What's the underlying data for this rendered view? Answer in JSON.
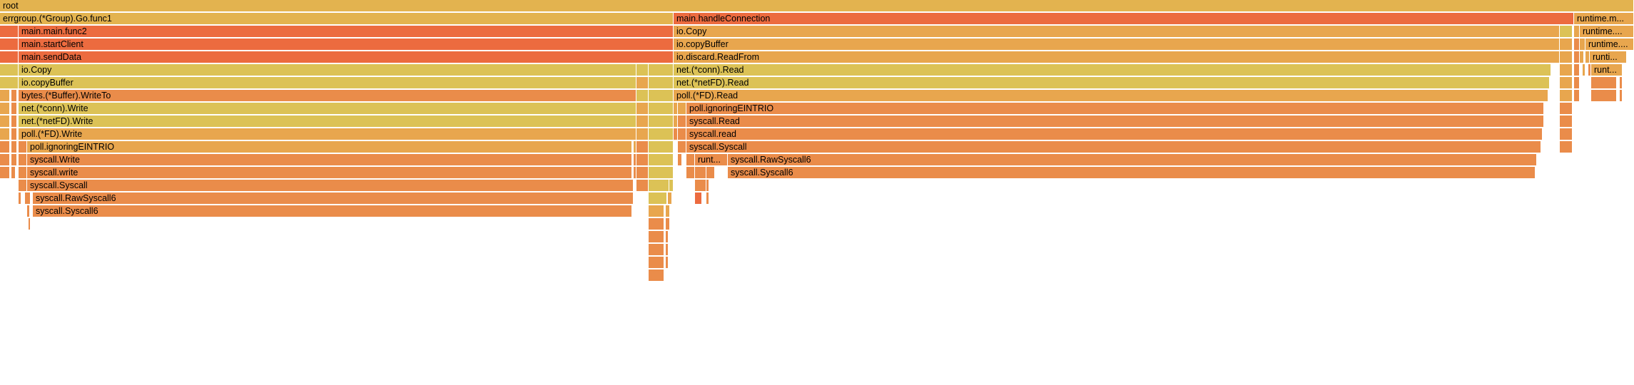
{
  "palette": {
    "red": "#ec6b3f",
    "orange": "#ea8c4a",
    "ochre": "#e8a64e",
    "gold": "#e3b34f",
    "yellow": "#dcc256"
  },
  "chart_data": {
    "type": "flamegraph",
    "title": "",
    "total": 2290,
    "frames": [
      {
        "name": "root",
        "depth": 0,
        "start": 0,
        "width": 2290,
        "color": "gold"
      },
      {
        "name": "errgroup.(*Group).Go.func1",
        "depth": 1,
        "start": 0,
        "width": 944,
        "color": "gold"
      },
      {
        "name": "main.handleConnection",
        "depth": 1,
        "start": 944,
        "width": 1262,
        "color": "red"
      },
      {
        "name": "runtime.m...",
        "depth": 1,
        "start": 2206,
        "width": 84,
        "color": "ochre"
      },
      {
        "name": "",
        "depth": 2,
        "start": 0,
        "width": 26,
        "color": "red"
      },
      {
        "name": "main.main.func2",
        "depth": 2,
        "start": 26,
        "width": 918,
        "color": "red"
      },
      {
        "name": "",
        "depth": 3,
        "start": 0,
        "width": 26,
        "color": "red"
      },
      {
        "name": "main.startClient",
        "depth": 3,
        "start": 26,
        "width": 918,
        "color": "red"
      },
      {
        "name": "",
        "depth": 4,
        "start": 0,
        "width": 26,
        "color": "red"
      },
      {
        "name": "main.sendData",
        "depth": 4,
        "start": 26,
        "width": 918,
        "color": "red"
      },
      {
        "name": "",
        "depth": 5,
        "start": 0,
        "width": 26,
        "color": "yellow"
      },
      {
        "name": "io.Copy",
        "depth": 5,
        "start": 26,
        "width": 866,
        "color": "yellow"
      },
      {
        "name": "",
        "depth": 5,
        "start": 892,
        "width": 17,
        "color": "yellow"
      },
      {
        "name": "",
        "depth": 5,
        "start": 909,
        "width": 35,
        "color": "yellow"
      },
      {
        "name": "",
        "depth": 6,
        "start": 0,
        "width": 26,
        "color": "yellow"
      },
      {
        "name": "io.copyBuffer",
        "depth": 6,
        "start": 26,
        "width": 866,
        "color": "yellow"
      },
      {
        "name": "",
        "depth": 6,
        "start": 892,
        "width": 17,
        "color": "ochre"
      },
      {
        "name": "",
        "depth": 6,
        "start": 909,
        "width": 35,
        "color": "yellow"
      },
      {
        "name": "",
        "depth": 7,
        "start": 0,
        "width": 14,
        "color": "ochre"
      },
      {
        "name": "",
        "depth": 7,
        "start": 16,
        "width": 8,
        "color": "orange"
      },
      {
        "name": "bytes.(*Buffer).WriteTo",
        "depth": 7,
        "start": 26,
        "width": 866,
        "color": "orange"
      },
      {
        "name": "",
        "depth": 7,
        "start": 892,
        "width": 17,
        "color": "yellow"
      },
      {
        "name": "",
        "depth": 7,
        "start": 909,
        "width": 35,
        "color": "yellow"
      },
      {
        "name": "",
        "depth": 8,
        "start": 0,
        "width": 14,
        "color": "ochre"
      },
      {
        "name": "",
        "depth": 8,
        "start": 16,
        "width": 8,
        "color": "orange"
      },
      {
        "name": "net.(*conn).Write",
        "depth": 8,
        "start": 26,
        "width": 866,
        "color": "yellow"
      },
      {
        "name": "",
        "depth": 8,
        "start": 892,
        "width": 17,
        "color": "ochre"
      },
      {
        "name": "",
        "depth": 8,
        "start": 909,
        "width": 35,
        "color": "yellow"
      },
      {
        "name": "",
        "depth": 9,
        "start": 0,
        "width": 14,
        "color": "ochre"
      },
      {
        "name": "",
        "depth": 9,
        "start": 16,
        "width": 8,
        "color": "orange"
      },
      {
        "name": "net.(*netFD).Write",
        "depth": 9,
        "start": 26,
        "width": 866,
        "color": "yellow"
      },
      {
        "name": "",
        "depth": 9,
        "start": 892,
        "width": 17,
        "color": "ochre"
      },
      {
        "name": "",
        "depth": 9,
        "start": 909,
        "width": 35,
        "color": "yellow"
      },
      {
        "name": "",
        "depth": 10,
        "start": 0,
        "width": 14,
        "color": "ochre"
      },
      {
        "name": "",
        "depth": 10,
        "start": 16,
        "width": 8,
        "color": "orange"
      },
      {
        "name": "poll.(*FD).Write",
        "depth": 10,
        "start": 26,
        "width": 866,
        "color": "ochre"
      },
      {
        "name": "",
        "depth": 10,
        "start": 892,
        "width": 17,
        "color": "ochre"
      },
      {
        "name": "",
        "depth": 10,
        "start": 909,
        "width": 35,
        "color": "yellow"
      },
      {
        "name": "",
        "depth": 11,
        "start": 0,
        "width": 14,
        "color": "orange"
      },
      {
        "name": "",
        "depth": 11,
        "start": 16,
        "width": 8,
        "color": "orange"
      },
      {
        "name": "",
        "depth": 11,
        "start": 26,
        "width": 12,
        "color": "orange"
      },
      {
        "name": "poll.ignoringEINTRIO",
        "depth": 11,
        "start": 38,
        "width": 848,
        "color": "ochre"
      },
      {
        "name": "",
        "depth": 11,
        "start": 888,
        "width": 4,
        "color": "ochre"
      },
      {
        "name": "",
        "depth": 11,
        "start": 892,
        "width": 17,
        "color": "orange"
      },
      {
        "name": "",
        "depth": 11,
        "start": 909,
        "width": 35,
        "color": "yellow"
      },
      {
        "name": "",
        "depth": 12,
        "start": 0,
        "width": 14,
        "color": "orange"
      },
      {
        "name": "",
        "depth": 12,
        "start": 16,
        "width": 8,
        "color": "orange"
      },
      {
        "name": "",
        "depth": 12,
        "start": 26,
        "width": 12,
        "color": "orange"
      },
      {
        "name": "syscall.Write",
        "depth": 12,
        "start": 38,
        "width": 848,
        "color": "orange"
      },
      {
        "name": "",
        "depth": 12,
        "start": 888,
        "width": 4,
        "color": "orange"
      },
      {
        "name": "",
        "depth": 12,
        "start": 892,
        "width": 17,
        "color": "orange"
      },
      {
        "name": "",
        "depth": 12,
        "start": 909,
        "width": 35,
        "color": "yellow"
      },
      {
        "name": "",
        "depth": 13,
        "start": 0,
        "width": 14,
        "color": "orange"
      },
      {
        "name": "",
        "depth": 13,
        "start": 16,
        "width": 6,
        "color": "orange"
      },
      {
        "name": "",
        "depth": 13,
        "start": 26,
        "width": 12,
        "color": "orange"
      },
      {
        "name": "syscall.write",
        "depth": 13,
        "start": 38,
        "width": 848,
        "color": "orange"
      },
      {
        "name": "",
        "depth": 13,
        "start": 888,
        "width": 4,
        "color": "orange"
      },
      {
        "name": "",
        "depth": 13,
        "start": 892,
        "width": 17,
        "color": "orange"
      },
      {
        "name": "",
        "depth": 13,
        "start": 909,
        "width": 35,
        "color": "yellow"
      },
      {
        "name": "",
        "depth": 14,
        "start": 26,
        "width": 12,
        "color": "orange"
      },
      {
        "name": "syscall.Syscall",
        "depth": 14,
        "start": 38,
        "width": 850,
        "color": "orange"
      },
      {
        "name": "",
        "depth": 14,
        "start": 892,
        "width": 17,
        "color": "orange"
      },
      {
        "name": "",
        "depth": 14,
        "start": 909,
        "width": 29,
        "color": "yellow"
      },
      {
        "name": "",
        "depth": 14,
        "start": 938,
        "width": 6,
        "color": "yellow"
      },
      {
        "name": "",
        "depth": 15,
        "start": 26,
        "width": 4,
        "color": "orange"
      },
      {
        "name": "",
        "depth": 15,
        "start": 35,
        "width": 8,
        "color": "orange"
      },
      {
        "name": "syscall.RawSyscall6",
        "depth": 15,
        "start": 46,
        "width": 842,
        "color": "orange"
      },
      {
        "name": "",
        "depth": 15,
        "start": 909,
        "width": 26,
        "color": "yellow"
      },
      {
        "name": "",
        "depth": 15,
        "start": 936,
        "width": 6,
        "color": "ochre"
      },
      {
        "name": "",
        "depth": 16,
        "start": 38,
        "width": 4,
        "color": "orange"
      },
      {
        "name": "syscall.Syscall6",
        "depth": 16,
        "start": 46,
        "width": 840,
        "color": "orange"
      },
      {
        "name": "",
        "depth": 16,
        "start": 909,
        "width": 22,
        "color": "ochre"
      },
      {
        "name": "",
        "depth": 16,
        "start": 933,
        "width": 6,
        "color": "ochre"
      },
      {
        "name": "",
        "depth": 17,
        "start": 40,
        "width": 3,
        "color": "orange"
      },
      {
        "name": "",
        "depth": 17,
        "start": 909,
        "width": 22,
        "color": "orange"
      },
      {
        "name": "",
        "depth": 17,
        "start": 933,
        "width": 6,
        "color": "orange"
      },
      {
        "name": "",
        "depth": 18,
        "start": 909,
        "width": 22,
        "color": "orange"
      },
      {
        "name": "",
        "depth": 18,
        "start": 933,
        "width": 4,
        "color": "orange"
      },
      {
        "name": "",
        "depth": 19,
        "start": 909,
        "width": 22,
        "color": "orange"
      },
      {
        "name": "",
        "depth": 19,
        "start": 933,
        "width": 4,
        "color": "orange"
      },
      {
        "name": "",
        "depth": 20,
        "start": 909,
        "width": 22,
        "color": "orange"
      },
      {
        "name": "",
        "depth": 20,
        "start": 933,
        "width": 4,
        "color": "orange"
      },
      {
        "name": "",
        "depth": 21,
        "start": 909,
        "width": 22,
        "color": "orange"
      },
      {
        "name": "io.Copy",
        "depth": 2,
        "start": 944,
        "width": 1242,
        "color": "ochre"
      },
      {
        "name": "",
        "depth": 2,
        "start": 2186,
        "width": 18,
        "color": "yellow"
      },
      {
        "name": "io.copyBuffer",
        "depth": 3,
        "start": 944,
        "width": 1242,
        "color": "ochre"
      },
      {
        "name": "",
        "depth": 3,
        "start": 2186,
        "width": 18,
        "color": "ochre"
      },
      {
        "name": "io.discard.ReadFrom",
        "depth": 4,
        "start": 944,
        "width": 1242,
        "color": "ochre"
      },
      {
        "name": "",
        "depth": 4,
        "start": 2186,
        "width": 18,
        "color": "ochre"
      },
      {
        "name": "net.(*conn).Read",
        "depth": 5,
        "start": 944,
        "width": 1230,
        "color": "yellow"
      },
      {
        "name": "",
        "depth": 5,
        "start": 2186,
        "width": 18,
        "color": "ochre"
      },
      {
        "name": "net.(*netFD).Read",
        "depth": 6,
        "start": 944,
        "width": 1228,
        "color": "yellow"
      },
      {
        "name": "",
        "depth": 6,
        "start": 2186,
        "width": 18,
        "color": "ochre"
      },
      {
        "name": "poll.(*FD).Read",
        "depth": 7,
        "start": 944,
        "width": 1226,
        "color": "ochre"
      },
      {
        "name": "",
        "depth": 7,
        "start": 2186,
        "width": 18,
        "color": "ochre"
      },
      {
        "name": "",
        "depth": 8,
        "start": 944,
        "width": 6,
        "color": "ochre"
      },
      {
        "name": "",
        "depth": 8,
        "start": 950,
        "width": 12,
        "color": "ochre"
      },
      {
        "name": "poll.ignoringEINTRIO",
        "depth": 8,
        "start": 962,
        "width": 1202,
        "color": "orange"
      },
      {
        "name": "",
        "depth": 8,
        "start": 2186,
        "width": 18,
        "color": "orange"
      },
      {
        "name": "",
        "depth": 9,
        "start": 944,
        "width": 6,
        "color": "ochre"
      },
      {
        "name": "",
        "depth": 9,
        "start": 950,
        "width": 12,
        "color": "orange"
      },
      {
        "name": "syscall.Read",
        "depth": 9,
        "start": 962,
        "width": 1202,
        "color": "orange"
      },
      {
        "name": "",
        "depth": 9,
        "start": 2186,
        "width": 18,
        "color": "orange"
      },
      {
        "name": "",
        "depth": 10,
        "start": 944,
        "width": 6,
        "color": "orange"
      },
      {
        "name": "",
        "depth": 10,
        "start": 950,
        "width": 12,
        "color": "orange"
      },
      {
        "name": "syscall.read",
        "depth": 10,
        "start": 962,
        "width": 1200,
        "color": "orange"
      },
      {
        "name": "",
        "depth": 10,
        "start": 2186,
        "width": 18,
        "color": "orange"
      },
      {
        "name": "",
        "depth": 11,
        "start": 950,
        "width": 12,
        "color": "orange"
      },
      {
        "name": "syscall.Syscall",
        "depth": 11,
        "start": 962,
        "width": 1198,
        "color": "orange"
      },
      {
        "name": "",
        "depth": 11,
        "start": 2186,
        "width": 18,
        "color": "orange"
      },
      {
        "name": "",
        "depth": 12,
        "start": 950,
        "width": 6,
        "color": "orange"
      },
      {
        "name": "",
        "depth": 12,
        "start": 962,
        "width": 12,
        "color": "orange"
      },
      {
        "name": "runt...",
        "depth": 12,
        "start": 974,
        "width": 46,
        "color": "orange"
      },
      {
        "name": "syscall.RawSyscall6",
        "depth": 12,
        "start": 1020,
        "width": 1134,
        "color": "orange"
      },
      {
        "name": "",
        "depth": 13,
        "start": 962,
        "width": 12,
        "color": "orange"
      },
      {
        "name": "",
        "depth": 13,
        "start": 974,
        "width": 16,
        "color": "orange"
      },
      {
        "name": "",
        "depth": 13,
        "start": 990,
        "width": 12,
        "color": "orange"
      },
      {
        "name": "syscall.Syscall6",
        "depth": 13,
        "start": 1020,
        "width": 1132,
        "color": "orange"
      },
      {
        "name": "",
        "depth": 14,
        "start": 974,
        "width": 16,
        "color": "orange"
      },
      {
        "name": "",
        "depth": 14,
        "start": 990,
        "width": 4,
        "color": "orange"
      },
      {
        "name": "",
        "depth": 15,
        "start": 974,
        "width": 10,
        "color": "red"
      },
      {
        "name": "",
        "depth": 15,
        "start": 990,
        "width": 4,
        "color": "orange"
      },
      {
        "name": "",
        "depth": 2,
        "start": 2206,
        "width": 8,
        "color": "ochre"
      },
      {
        "name": "runtime....",
        "depth": 2,
        "start": 2214,
        "width": 76,
        "color": "ochre"
      },
      {
        "name": "",
        "depth": 3,
        "start": 2206,
        "width": 8,
        "color": "orange"
      },
      {
        "name": "",
        "depth": 3,
        "start": 2214,
        "width": 8,
        "color": "ochre"
      },
      {
        "name": "runtime....",
        "depth": 3,
        "start": 2222,
        "width": 68,
        "color": "ochre"
      },
      {
        "name": "",
        "depth": 4,
        "start": 2206,
        "width": 8,
        "color": "orange"
      },
      {
        "name": "",
        "depth": 4,
        "start": 2214,
        "width": 6,
        "color": "ochre"
      },
      {
        "name": "",
        "depth": 4,
        "start": 2222,
        "width": 6,
        "color": "ochre"
      },
      {
        "name": "runti...",
        "depth": 4,
        "start": 2228,
        "width": 52,
        "color": "ochre"
      },
      {
        "name": "",
        "depth": 5,
        "start": 2206,
        "width": 8,
        "color": "orange"
      },
      {
        "name": "",
        "depth": 5,
        "start": 2218,
        "width": 4,
        "color": "ochre"
      },
      {
        "name": "",
        "depth": 5,
        "start": 2226,
        "width": 4,
        "color": "orange"
      },
      {
        "name": "runt...",
        "depth": 5,
        "start": 2230,
        "width": 44,
        "color": "ochre"
      },
      {
        "name": "",
        "depth": 6,
        "start": 2206,
        "width": 8,
        "color": "orange"
      },
      {
        "name": "",
        "depth": 6,
        "start": 2230,
        "width": 36,
        "color": "orange"
      },
      {
        "name": "",
        "depth": 6,
        "start": 2270,
        "width": 4,
        "color": "orange"
      },
      {
        "name": "",
        "depth": 7,
        "start": 2206,
        "width": 8,
        "color": "orange"
      },
      {
        "name": "",
        "depth": 7,
        "start": 2230,
        "width": 36,
        "color": "orange"
      },
      {
        "name": "",
        "depth": 7,
        "start": 2270,
        "width": 4,
        "color": "orange"
      }
    ]
  }
}
